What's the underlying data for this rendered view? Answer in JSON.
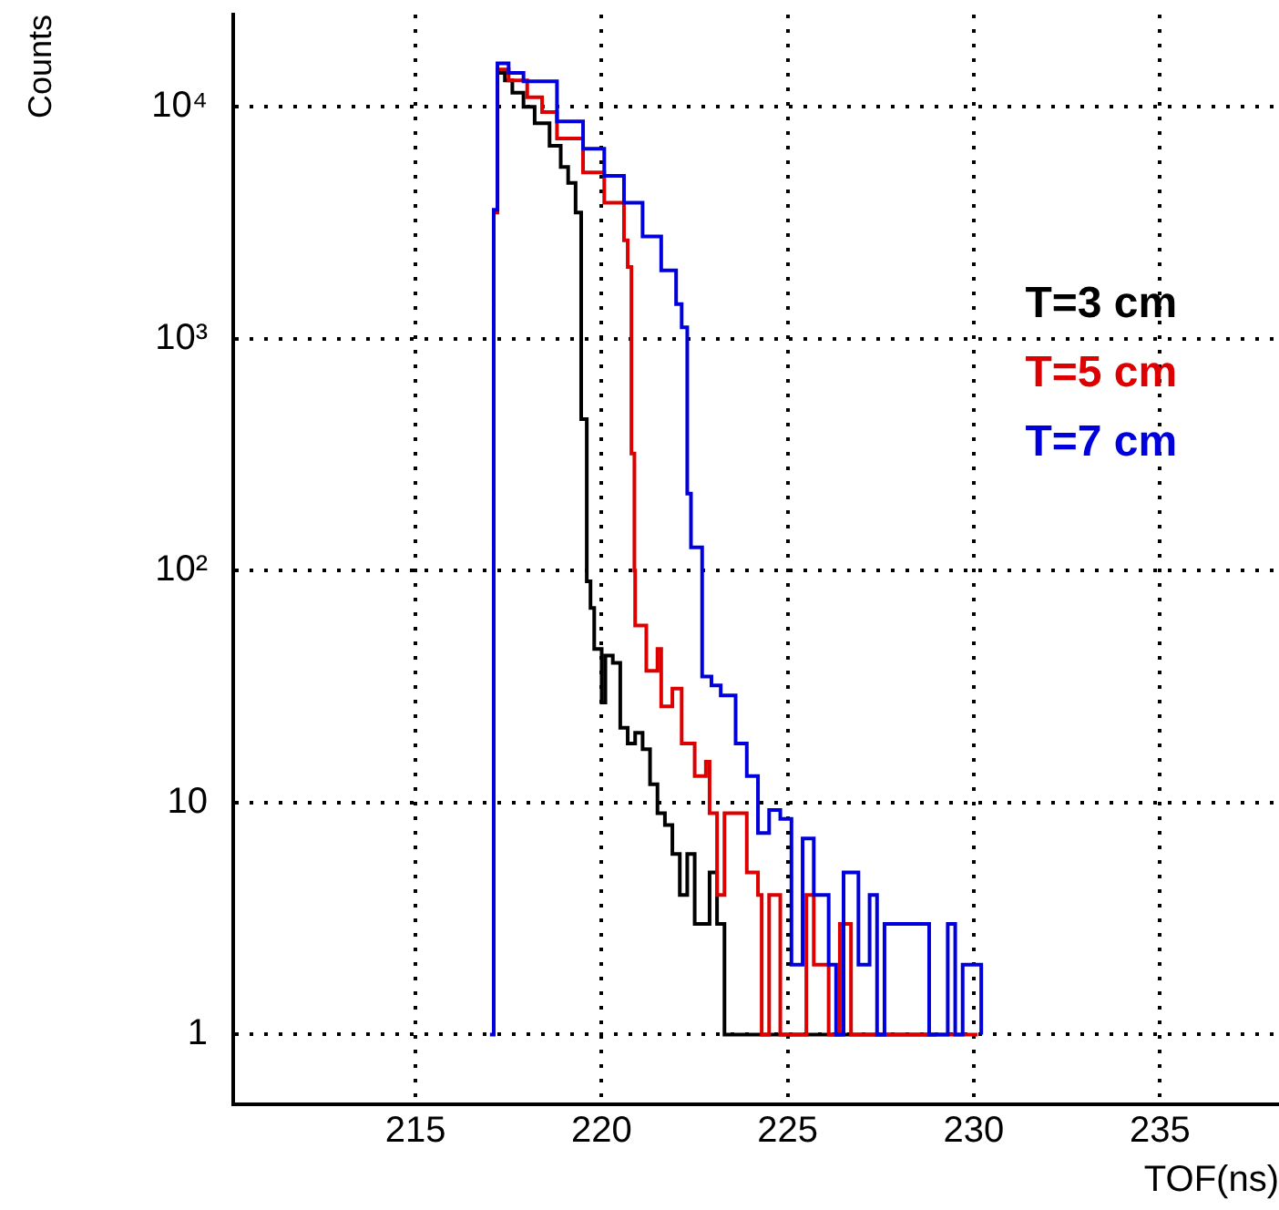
{
  "chart_data": {
    "type": "step",
    "xlabel": "TOF(ns)",
    "ylabel": "Counts",
    "log": "y",
    "grid": true,
    "legend": "right",
    "xlim": [
      210.1,
      238.2
    ],
    "xticks": [
      215,
      220,
      225,
      230,
      235
    ],
    "ylim": [
      0.5,
      25000
    ],
    "yticks": [
      1,
      10,
      {
        "value": 100,
        "label": "10²"
      },
      {
        "value": 1000,
        "label": "10³"
      },
      {
        "value": 10000,
        "label": "10⁴"
      }
    ],
    "series": [
      {
        "name": "T=3 cm",
        "color": "#000000",
        "x": [
          217.2,
          217.4,
          217.6,
          217.9,
          218.2,
          218.6,
          218.9,
          219.1,
          219.3,
          219.45,
          219.6,
          219.7,
          219.8,
          220.0,
          220.1,
          220.3,
          220.5,
          220.7,
          220.9,
          221.1,
          221.3,
          221.5,
          221.7,
          221.9,
          222.1,
          222.3,
          222.5,
          222.7,
          222.9,
          223.1,
          223.3,
          229.0
        ],
        "values": [
          14000,
          13000,
          11500,
          10000,
          8500,
          6800,
          5500,
          4700,
          3500,
          450,
          90,
          69,
          46,
          27,
          43,
          40,
          21,
          18,
          20,
          17,
          12,
          9,
          8,
          6,
          4,
          6,
          3,
          3,
          5,
          3,
          1,
          1
        ]
      },
      {
        "name": "T=5 cm",
        "color": "#dd0000",
        "x": [
          217.1,
          217.2,
          217.5,
          218.0,
          218.4,
          218.8,
          219.5,
          220.07,
          220.6,
          220.7,
          220.8,
          220.88,
          220.9,
          221.2,
          221.5,
          221.6,
          221.9,
          222.15,
          222.5,
          222.8,
          222.9,
          223.1,
          223.3,
          223.7,
          223.9,
          224.2,
          224.3,
          224.5,
          224.8,
          225.5,
          225.7,
          226.1,
          226.4,
          226.7,
          230.1
        ],
        "values": [
          3500,
          14500,
          13000,
          11000,
          9500,
          7300,
          5220,
          3860,
          2660,
          2040,
          320,
          100,
          58,
          37,
          46,
          26,
          31,
          18,
          13,
          15,
          9,
          4,
          9,
          9,
          5,
          4,
          1,
          4,
          1,
          4,
          2,
          1,
          3,
          1,
          1
        ]
      },
      {
        "name": "T=7 cm",
        "color": "#0000dd",
        "x": [
          217.0,
          217.1,
          217.2,
          217.5,
          217.9,
          218.8,
          219.5,
          220.07,
          220.6,
          221.1,
          221.6,
          222.0,
          222.15,
          222.3,
          222.4,
          222.7,
          222.95,
          223.2,
          223.6,
          223.9,
          224.2,
          224.5,
          224.8,
          225.1,
          225.4,
          225.7,
          226.1,
          226.3,
          226.5,
          226.9,
          227.2,
          227.4,
          227.6,
          228.8,
          229.3,
          229.5,
          229.7,
          230.2
        ],
        "values": [
          1,
          3600,
          15400,
          14000,
          12900,
          8650,
          6600,
          5040,
          3860,
          2760,
          1970,
          1410,
          1120,
          215,
          126,
          35,
          32,
          29,
          18,
          13,
          7.4,
          9.3,
          8.5,
          2,
          7,
          4,
          2,
          1,
          5,
          2,
          4,
          1,
          3,
          1,
          3,
          1,
          2,
          1
        ]
      }
    ]
  }
}
